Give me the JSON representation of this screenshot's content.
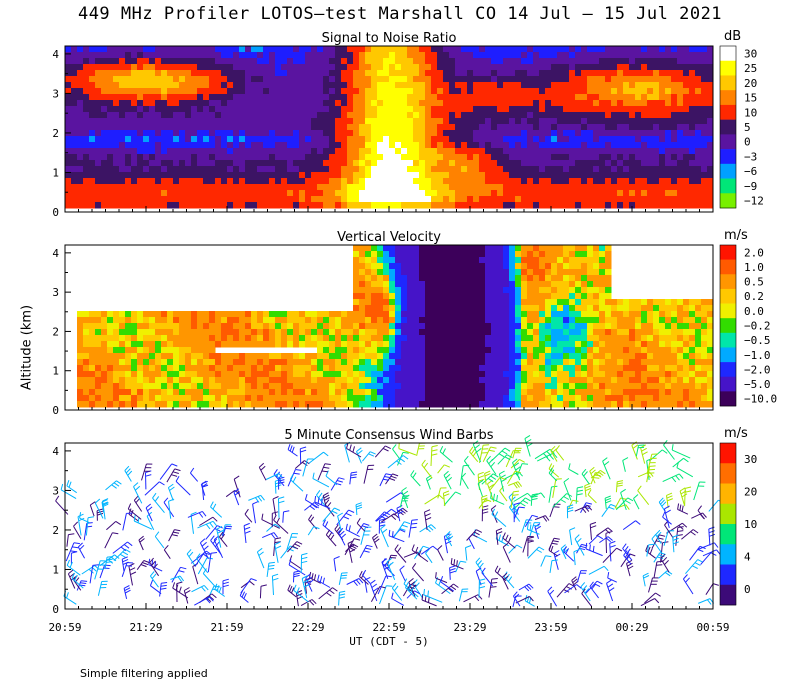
{
  "title": "449 MHz Profiler LOTOS–test Marshall CO 14 Jul – 15 Jul 2021",
  "ylabel": "Altitude (km)",
  "xlabel": "UT  (CDT - 5)",
  "footnote": "Simple filtering applied",
  "chart_data": [
    {
      "type": "heatmap",
      "title": "Signal to Noise Ratio",
      "x_ticks": [
        "20:59",
        "21:29",
        "21:59",
        "22:29",
        "22:59",
        "23:29",
        "23:59",
        "00:29",
        "00:59"
      ],
      "y_ticks": [
        "0",
        "1",
        "2",
        "3",
        "4"
      ],
      "ylim": [
        0,
        4.2
      ],
      "colorbar": {
        "unit": "dB",
        "labels": [
          "30",
          "25",
          "20",
          "15",
          "10",
          "5",
          "0",
          "−3",
          "−6",
          "−9",
          "−12"
        ],
        "colors": [
          "#ffffff",
          "#ffff00",
          "#ffc800",
          "#ff8200",
          "#ff2800",
          "#3c1464",
          "#5a14a0",
          "#1e1eff",
          "#00a0ff",
          "#00e678",
          "#78f000"
        ]
      }
    },
    {
      "type": "heatmap",
      "title": "Vertical Velocity",
      "x_ticks": [
        "20:59",
        "21:29",
        "21:59",
        "22:29",
        "22:59",
        "23:29",
        "23:59",
        "00:29",
        "00:59"
      ],
      "y_ticks": [
        "0",
        "1",
        "2",
        "3",
        "4"
      ],
      "ylim": [
        0,
        4.2
      ],
      "colorbar": {
        "unit": "m/s",
        "labels": [
          "2.0",
          "1.0",
          "0.5",
          "0.2",
          "0.0",
          "−0.2",
          "−0.5",
          "−1.0",
          "−2.0",
          "−5.0",
          "−10.0"
        ],
        "colors": [
          "#ff1400",
          "#ff5a00",
          "#ff9600",
          "#ffc800",
          "#f0f000",
          "#32dc00",
          "#00e6aa",
          "#00aaff",
          "#1e28ff",
          "#4614c8",
          "#3c005a"
        ]
      }
    },
    {
      "type": "scatter",
      "title": "5 Minute Consensus Wind Barbs",
      "x_ticks": [
        "20:59",
        "21:29",
        "21:59",
        "22:29",
        "22:59",
        "23:29",
        "23:59",
        "00:29",
        "00:59"
      ],
      "y_ticks": [
        "0",
        "1",
        "2",
        "3",
        "4"
      ],
      "ylim": [
        0,
        4.2
      ],
      "colorbar": {
        "unit": "m/s",
        "labels": [
          "30",
          "20",
          "10",
          "4",
          "0"
        ],
        "colors": [
          "#ff1400",
          "#ff6e00",
          "#ffb400",
          "#aae600",
          "#00e678",
          "#00b4ff",
          "#1e28ff",
          "#3c0a78"
        ]
      }
    }
  ]
}
